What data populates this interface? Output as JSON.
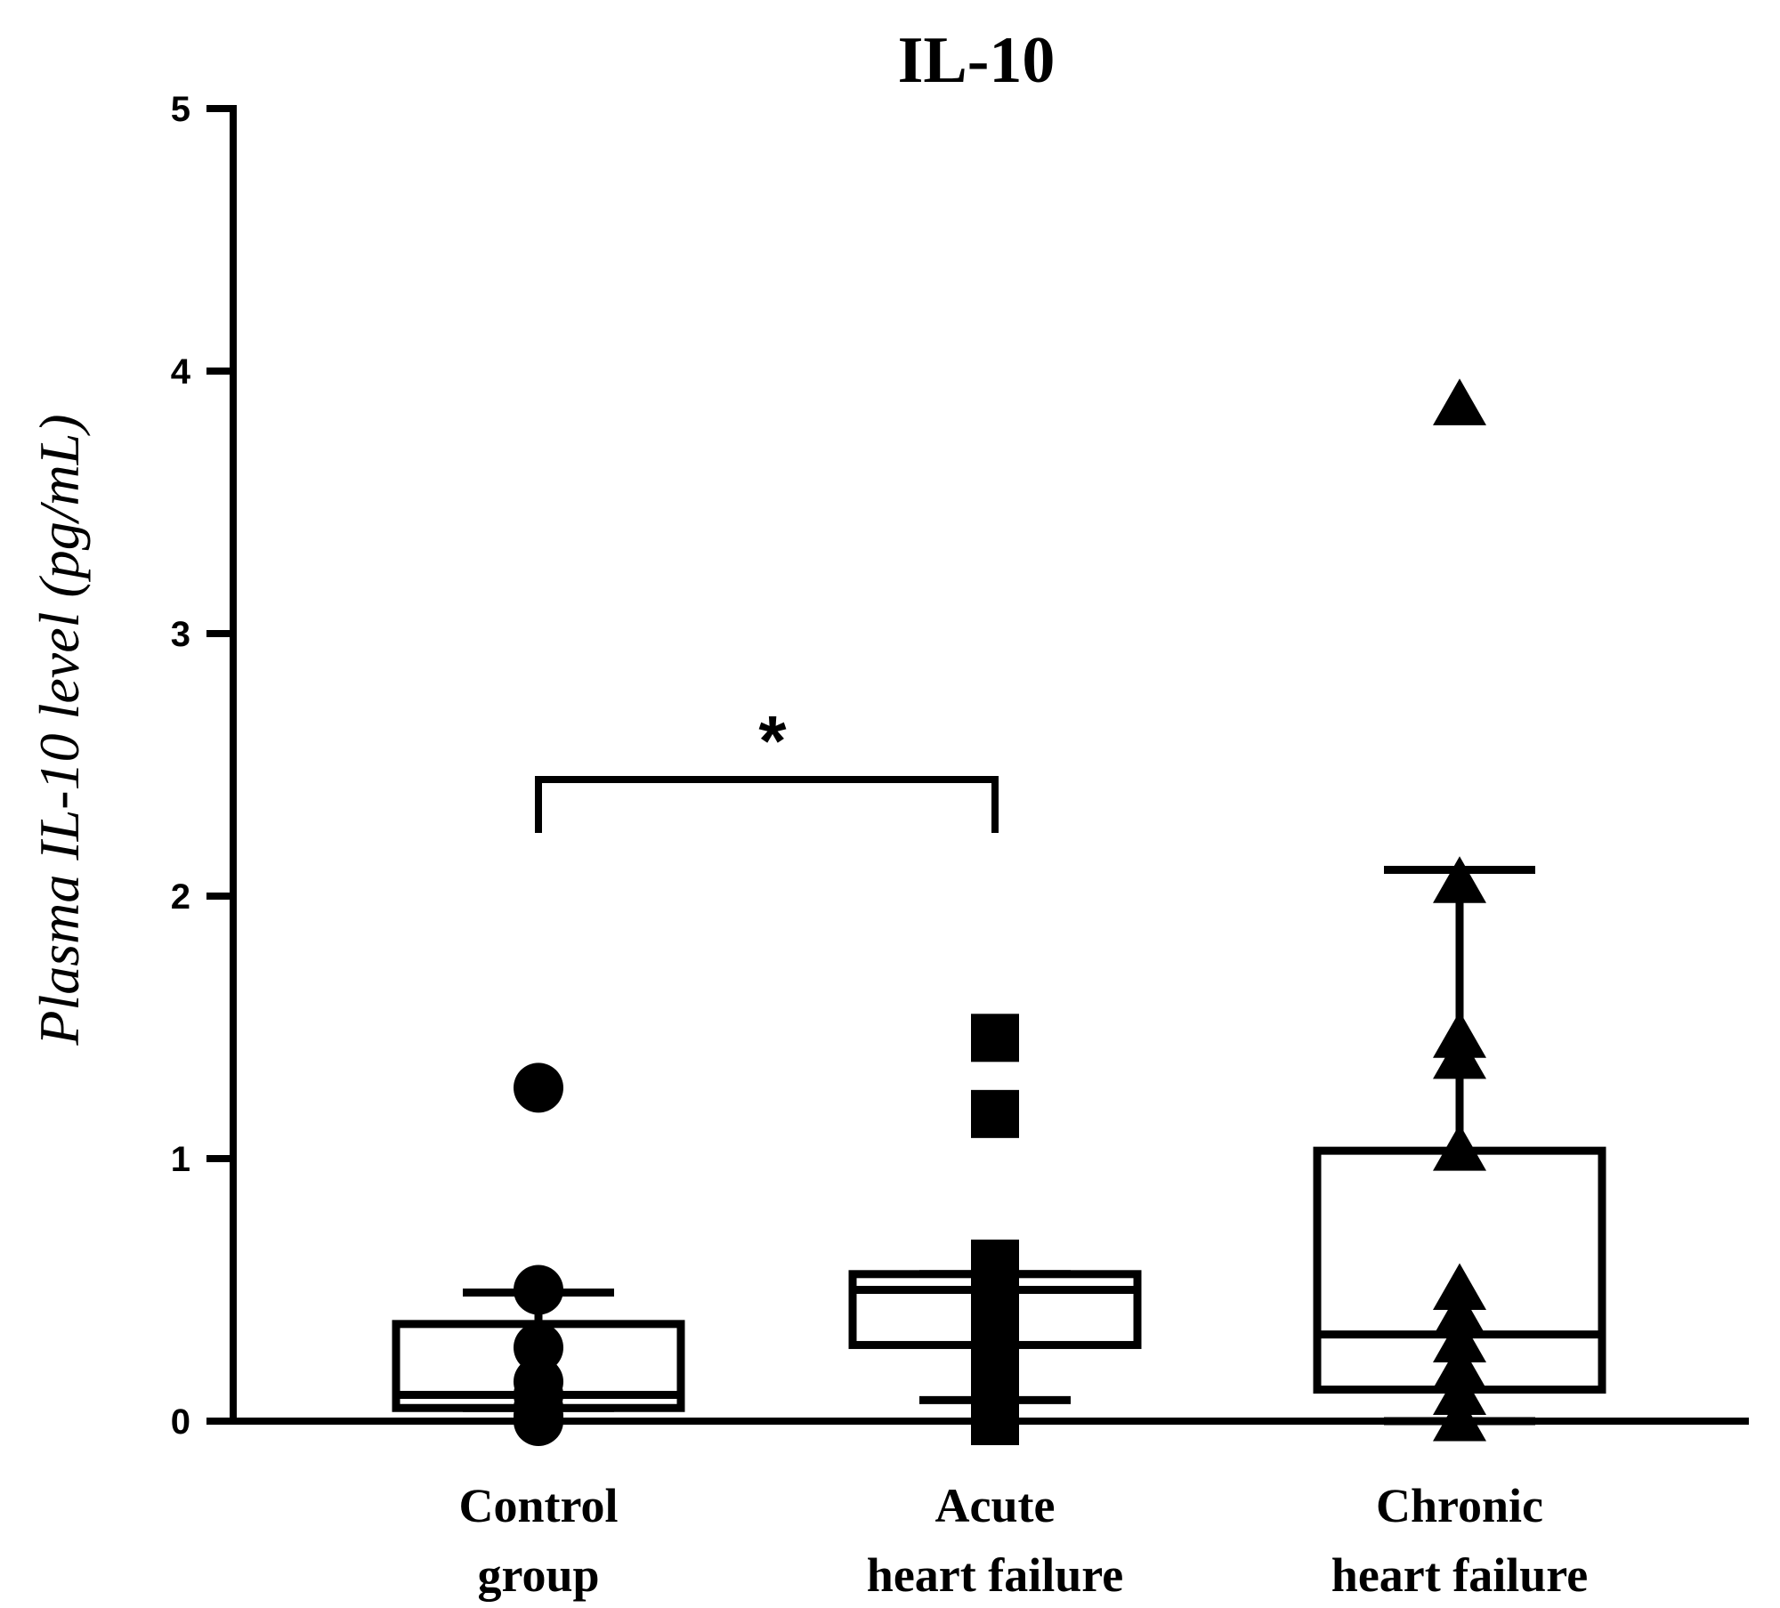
{
  "chart_data": {
    "type": "box",
    "title": "IL-10",
    "xlabel": "",
    "ylabel": "Plasma IL-10 level (pg/mL)",
    "ylim": [
      0,
      5
    ],
    "yticks": [
      "0",
      "1",
      "2",
      "3",
      "4",
      "5"
    ],
    "groups": [
      {
        "label_lines": [
          "Control",
          "group"
        ],
        "marker": "circle",
        "q1": 0.05,
        "median": 0.1,
        "q3": 0.37,
        "whisker_low": 0.05,
        "whisker_high": 0.49,
        "points": [
          1.27,
          0.5,
          0.28,
          0.15,
          0.1,
          0.05,
          0.02,
          0.0
        ]
      },
      {
        "label_lines": [
          "Acute",
          "heart failure"
        ],
        "marker": "square",
        "q1": 0.29,
        "median": 0.5,
        "q3": 0.56,
        "whisker_low": 0.08,
        "whisker_high": 0.56,
        "points": [
          1.46,
          1.17,
          0.6,
          0.52,
          0.45,
          0.38,
          0.3,
          0.2,
          0.12,
          0.05,
          0.0
        ]
      },
      {
        "label_lines": [
          "Chronic",
          "heart failure"
        ],
        "marker": "triangle",
        "q1": 0.12,
        "median": 0.33,
        "q3": 1.03,
        "whisker_low": 0.0,
        "whisker_high": 2.1,
        "points": [
          3.87,
          2.05,
          1.46,
          1.38,
          1.03,
          0.5,
          0.4,
          0.3,
          0.2,
          0.1,
          0.0
        ]
      }
    ],
    "significance": {
      "from_group": 0,
      "to_group": 1,
      "label": "*"
    }
  }
}
